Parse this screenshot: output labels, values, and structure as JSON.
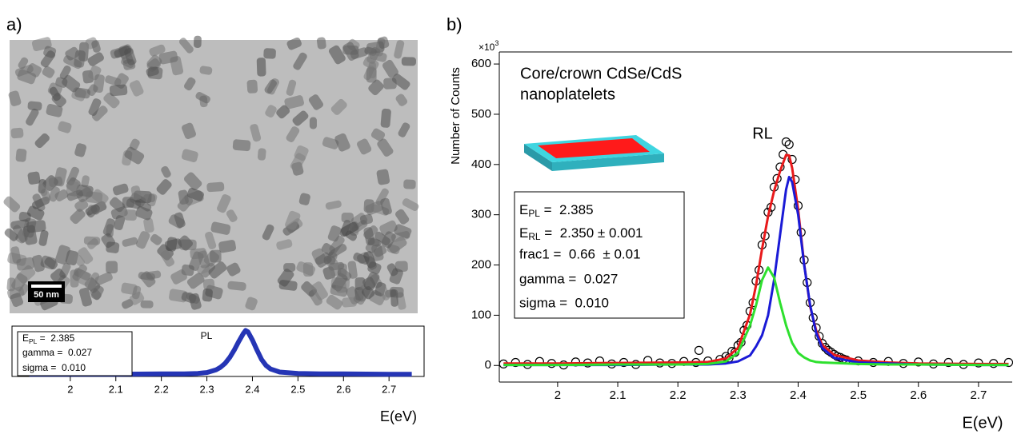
{
  "panel_labels": [
    "a)",
    "b)"
  ],
  "image": {
    "scale_bar": "50 nm"
  },
  "chart_data": [
    {
      "type": "line",
      "xlabel": "E(eV)",
      "annotation": "PL",
      "stats": [
        {
          "main": "E",
          "sub": "PL",
          "rest": " =  2.385"
        },
        {
          "text": "gamma =  0.027"
        },
        {
          "text": "sigma =  0.010"
        }
      ],
      "series": [
        {
          "color": "#2535b5",
          "x": [
            1.91,
            2.0,
            2.1,
            2.2,
            2.25,
            2.28,
            2.3,
            2.32,
            2.33,
            2.34,
            2.35,
            2.36,
            2.37,
            2.38,
            2.385,
            2.39,
            2.4,
            2.41,
            2.42,
            2.43,
            2.44,
            2.46,
            2.5,
            2.55,
            2.6,
            2.7,
            2.75
          ],
          "values": [
            0,
            0,
            0,
            0.01,
            0.01,
            0.02,
            0.04,
            0.1,
            0.16,
            0.25,
            0.38,
            0.55,
            0.75,
            0.93,
            1.0,
            0.97,
            0.78,
            0.55,
            0.34,
            0.2,
            0.12,
            0.05,
            0.02,
            0.01,
            0.01,
            0,
            0
          ]
        }
      ],
      "xlim": [
        1.872,
        2.777
      ],
      "ylim": [
        -0.05,
        1.1
      ],
      "xticks": [
        2,
        2.1,
        2.2,
        2.3,
        2.4,
        2.5,
        2.6,
        2.7
      ]
    },
    {
      "type": "line",
      "xlabel": "E(eV)",
      "ylabel": "Number of Counts",
      "y_scale_label": {
        "base": "×10",
        "exponent": "3"
      },
      "title": [
        "Core/crown CdSe/CdS",
        "nanoplatelets"
      ],
      "annotation": "RL",
      "stats": [
        {
          "main": "E",
          "sub": "PL",
          "rest": " =  2.385"
        },
        {
          "main": "E",
          "sub": "RL",
          "rest": " =  2.350 ± 0.001"
        },
        {
          "text": "frac1 =  0.66  ± 0.01"
        },
        {
          "text": "gamma =  0.027"
        },
        {
          "text": "sigma =  0.010"
        }
      ],
      "series": [
        {
          "style": "markers",
          "color": "#000000",
          "x": [
            1.91,
            1.93,
            1.95,
            1.97,
            1.99,
            2.01,
            2.03,
            2.05,
            2.07,
            2.09,
            2.11,
            2.13,
            2.15,
            2.17,
            2.19,
            2.21,
            2.23,
            2.235,
            2.25,
            2.27,
            2.28,
            2.285,
            2.29,
            2.295,
            2.3,
            2.305,
            2.31,
            2.315,
            2.32,
            2.325,
            2.33,
            2.335,
            2.34,
            2.345,
            2.35,
            2.355,
            2.36,
            2.365,
            2.37,
            2.375,
            2.38,
            2.385,
            2.39,
            2.395,
            2.4,
            2.405,
            2.41,
            2.415,
            2.42,
            2.425,
            2.43,
            2.435,
            2.44,
            2.445,
            2.45,
            2.455,
            2.46,
            2.465,
            2.47,
            2.475,
            2.48,
            2.5,
            2.525,
            2.55,
            2.575,
            2.6,
            2.625,
            2.65,
            2.675,
            2.7,
            2.725,
            2.75
          ],
          "values": [
            3,
            6,
            2,
            8,
            4,
            1,
            7,
            5,
            9,
            3,
            6,
            2,
            10,
            5,
            4,
            8,
            6,
            30,
            9,
            12,
            18,
            15,
            28,
            26,
            40,
            46,
            70,
            80,
            108,
            125,
            168,
            190,
            240,
            258,
            305,
            315,
            355,
            372,
            395,
            420,
            445,
            440,
            410,
            370,
            318,
            265,
            210,
            165,
            125,
            95,
            75,
            58,
            44,
            36,
            30,
            26,
            22,
            18,
            16,
            13,
            11,
            9,
            6,
            8,
            4,
            7,
            3,
            6,
            2,
            5,
            4,
            6
          ]
        },
        {
          "style": "line",
          "color": "#e8191b",
          "x": [
            1.91,
            2.0,
            2.1,
            2.2,
            2.25,
            2.28,
            2.3,
            2.32,
            2.33,
            2.34,
            2.35,
            2.36,
            2.37,
            2.38,
            2.385,
            2.39,
            2.4,
            2.41,
            2.42,
            2.43,
            2.44,
            2.46,
            2.5,
            2.55,
            2.6,
            2.7,
            2.75
          ],
          "values": [
            4,
            4,
            5,
            6,
            7,
            14,
            35,
            102,
            160,
            232,
            297,
            347,
            387,
            419,
            418,
            393,
            310,
            202,
            117,
            70,
            41,
            21,
            10,
            6,
            4,
            3,
            3
          ]
        },
        {
          "style": "line",
          "color": "#1a1ad6",
          "x": [
            1.91,
            2.0,
            2.1,
            2.2,
            2.25,
            2.28,
            2.3,
            2.32,
            2.33,
            2.34,
            2.35,
            2.36,
            2.37,
            2.38,
            2.385,
            2.39,
            2.4,
            2.41,
            2.42,
            2.43,
            2.44,
            2.46,
            2.5,
            2.55,
            2.6,
            2.7,
            2.75
          ],
          "values": [
            1,
            1,
            1,
            2,
            2,
            4,
            8,
            20,
            38,
            60,
            100,
            170,
            260,
            350,
            375,
            365,
            300,
            200,
            120,
            65,
            35,
            15,
            6,
            4,
            2,
            1,
            1
          ]
        },
        {
          "style": "line",
          "color": "#2ee02e",
          "x": [
            1.91,
            2.0,
            2.1,
            2.2,
            2.25,
            2.28,
            2.3,
            2.32,
            2.33,
            2.34,
            2.35,
            2.36,
            2.37,
            2.38,
            2.385,
            2.39,
            2.4,
            2.41,
            2.42,
            2.43,
            2.44,
            2.46,
            2.5,
            2.55,
            2.6,
            2.7,
            2.75
          ],
          "values": [
            1,
            1,
            2,
            2,
            3,
            8,
            25,
            80,
            120,
            170,
            195,
            175,
            125,
            80,
            62,
            45,
            25,
            16,
            10,
            7,
            6,
            5,
            3,
            2,
            2,
            1,
            1
          ]
        }
      ],
      "xlim": [
        1.903,
        2.756
      ],
      "ylim": [
        -33,
        624
      ],
      "xticks": [
        2,
        2.1,
        2.2,
        2.3,
        2.4,
        2.5,
        2.6,
        2.7
      ],
      "yticks": [
        0,
        100,
        200,
        300,
        400,
        500,
        600
      ]
    }
  ]
}
